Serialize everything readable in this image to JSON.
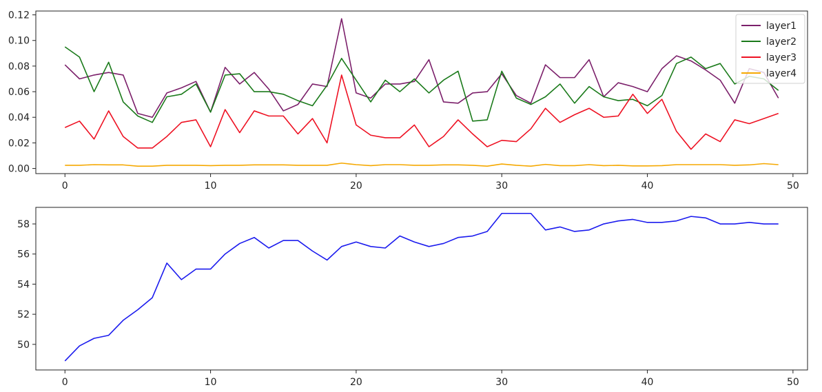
{
  "chart_data": [
    {
      "type": "line",
      "x": [
        0,
        1,
        2,
        3,
        4,
        5,
        6,
        7,
        8,
        9,
        10,
        11,
        12,
        13,
        14,
        15,
        16,
        17,
        18,
        19,
        20,
        21,
        22,
        23,
        24,
        25,
        26,
        27,
        28,
        29,
        30,
        31,
        32,
        33,
        34,
        35,
        36,
        37,
        38,
        39,
        40,
        41,
        42,
        43,
        44,
        45,
        46,
        47,
        48,
        49
      ],
      "xlim": [
        -2,
        51
      ],
      "ylim": [
        -0.004,
        0.123
      ],
      "xticks": [
        0,
        10,
        20,
        30,
        40,
        50
      ],
      "xtick_labels": [
        "0",
        "10",
        "20",
        "30",
        "40",
        "50"
      ],
      "yticks": [
        0.0,
        0.02,
        0.04,
        0.06,
        0.08,
        0.1,
        0.12
      ],
      "ytick_labels": [
        "0.00",
        "0.02",
        "0.04",
        "0.06",
        "0.08",
        "0.10",
        "0.12"
      ],
      "grid": false,
      "legend_position": "top-right",
      "series": [
        {
          "name": "layer1",
          "color": "#7b1f6a",
          "values": [
            0.081,
            0.07,
            0.073,
            0.075,
            0.073,
            0.043,
            0.04,
            0.059,
            0.063,
            0.068,
            0.044,
            0.079,
            0.066,
            0.075,
            0.062,
            0.045,
            0.05,
            0.066,
            0.064,
            0.117,
            0.059,
            0.055,
            0.066,
            0.066,
            0.068,
            0.085,
            0.052,
            0.051,
            0.059,
            0.06,
            0.074,
            0.057,
            0.051,
            0.081,
            0.071,
            0.071,
            0.085,
            0.056,
            0.067,
            0.064,
            0.06,
            0.078,
            0.088,
            0.084,
            0.077,
            0.069,
            0.051,
            0.078,
            0.075,
            0.055
          ]
        },
        {
          "name": "layer2",
          "color": "#1a7a1a",
          "values": [
            0.095,
            0.087,
            0.06,
            0.083,
            0.052,
            0.041,
            0.036,
            0.056,
            0.058,
            0.066,
            0.044,
            0.073,
            0.074,
            0.06,
            0.06,
            0.058,
            0.053,
            0.049,
            0.065,
            0.086,
            0.069,
            0.052,
            0.069,
            0.06,
            0.07,
            0.059,
            0.069,
            0.076,
            0.037,
            0.038,
            0.076,
            0.055,
            0.05,
            0.056,
            0.066,
            0.051,
            0.064,
            0.056,
            0.053,
            0.054,
            0.049,
            0.057,
            0.082,
            0.087,
            0.078,
            0.082,
            0.066,
            0.072,
            0.07,
            0.061
          ]
        },
        {
          "name": "layer3",
          "color": "#ee1122",
          "values": [
            0.032,
            0.037,
            0.023,
            0.045,
            0.025,
            0.016,
            0.016,
            0.025,
            0.036,
            0.038,
            0.017,
            0.046,
            0.028,
            0.045,
            0.041,
            0.041,
            0.027,
            0.039,
            0.02,
            0.073,
            0.034,
            0.026,
            0.024,
            0.024,
            0.034,
            0.017,
            0.025,
            0.038,
            0.027,
            0.017,
            0.022,
            0.021,
            0.031,
            0.047,
            0.036,
            0.042,
            0.047,
            0.04,
            0.041,
            0.058,
            0.043,
            0.054,
            0.029,
            0.015,
            0.027,
            0.021,
            0.038,
            0.035,
            0.039,
            0.043
          ]
        },
        {
          "name": "layer4",
          "color": "#f5a800",
          "values": [
            0.0025,
            0.0025,
            0.003,
            0.0028,
            0.0028,
            0.0018,
            0.0018,
            0.0025,
            0.0025,
            0.0025,
            0.0022,
            0.0025,
            0.0025,
            0.0028,
            0.0028,
            0.0028,
            0.0025,
            0.0025,
            0.0025,
            0.0042,
            0.003,
            0.0022,
            0.003,
            0.003,
            0.0025,
            0.0025,
            0.0028,
            0.0028,
            0.0025,
            0.0018,
            0.0035,
            0.0025,
            0.0018,
            0.0032,
            0.0022,
            0.0022,
            0.003,
            0.0022,
            0.0025,
            0.002,
            0.002,
            0.0022,
            0.003,
            0.003,
            0.003,
            0.003,
            0.0025,
            0.0028,
            0.0038,
            0.003
          ]
        }
      ]
    },
    {
      "type": "line",
      "x": [
        0,
        1,
        2,
        3,
        4,
        5,
        6,
        7,
        8,
        9,
        10,
        11,
        12,
        13,
        14,
        15,
        16,
        17,
        18,
        19,
        20,
        21,
        22,
        23,
        24,
        25,
        26,
        27,
        28,
        29,
        30,
        31,
        32,
        33,
        34,
        35,
        36,
        37,
        38,
        39,
        40,
        41,
        42,
        43,
        44,
        45,
        46,
        47,
        48,
        49
      ],
      "xlim": [
        -2,
        51
      ],
      "ylim": [
        48.3,
        59.1
      ],
      "xticks": [
        0,
        10,
        20,
        30,
        40,
        50
      ],
      "xtick_labels": [
        "0",
        "10",
        "20",
        "30",
        "40",
        "50"
      ],
      "yticks": [
        50,
        52,
        54,
        56,
        58
      ],
      "ytick_labels": [
        "50",
        "52",
        "54",
        "56",
        "58"
      ],
      "grid": false,
      "series": [
        {
          "color": "#1a1aee",
          "values": [
            48.9,
            49.9,
            50.4,
            50.6,
            51.6,
            52.3,
            53.1,
            55.4,
            54.3,
            55.0,
            55.0,
            56.0,
            56.7,
            57.1,
            56.4,
            56.9,
            56.9,
            56.2,
            55.6,
            56.5,
            56.8,
            56.5,
            56.4,
            57.2,
            56.8,
            56.5,
            56.7,
            57.1,
            57.2,
            57.5,
            58.7,
            58.7,
            58.7,
            57.6,
            57.8,
            57.5,
            57.6,
            58.0,
            58.2,
            58.3,
            58.1,
            58.1,
            58.2,
            58.5,
            58.4,
            58.0,
            58.0,
            58.1,
            58.0,
            58.0
          ]
        }
      ]
    }
  ]
}
